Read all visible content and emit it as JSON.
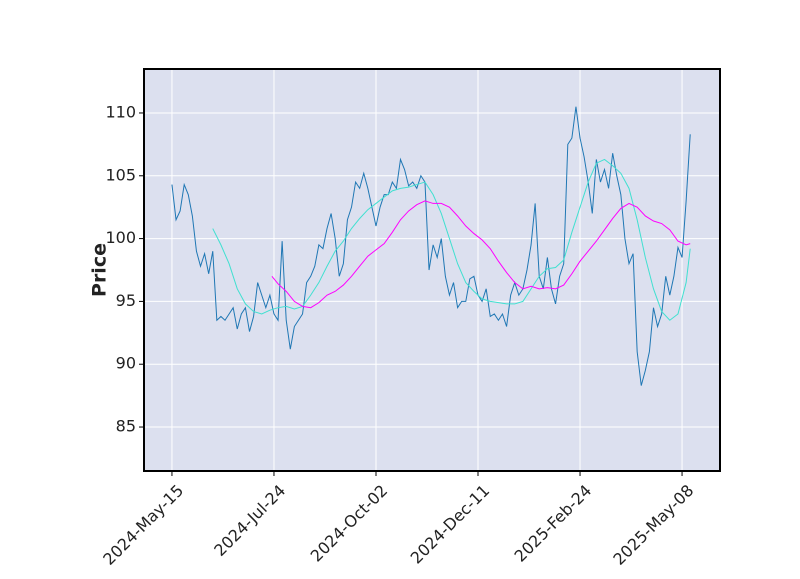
{
  "chart_data": {
    "type": "line",
    "y_label": "Price",
    "background": "#dce0ef",
    "grid": true,
    "grid_color": "#ffffff",
    "xlim": [
      -13.7,
      268.6
    ],
    "ylim": [
      81.5,
      113.5
    ],
    "xticks": [
      {
        "value": 0,
        "label": "2024-May-15"
      },
      {
        "value": 50,
        "label": "2024-Jul-24"
      },
      {
        "value": 100,
        "label": "2024-Oct-02"
      },
      {
        "value": 150,
        "label": "2024-Dec-11"
      },
      {
        "value": 200,
        "label": "2025-Feb-24"
      },
      {
        "value": 250,
        "label": "2025-May-08"
      }
    ],
    "yticks": [
      85,
      90,
      95,
      100,
      105,
      110
    ],
    "series": [
      {
        "color": "#1f77b4",
        "x": [
          0,
          2,
          4,
          6,
          8,
          10,
          12,
          14,
          16,
          18,
          20,
          22,
          24,
          26,
          28,
          30,
          32,
          34,
          36,
          38,
          40,
          42,
          44,
          46,
          48,
          50,
          52,
          54,
          56,
          58,
          60,
          62,
          64,
          66,
          68,
          70,
          72,
          74,
          76,
          78,
          80,
          82,
          84,
          86,
          88,
          90,
          92,
          94,
          96,
          98,
          100,
          102,
          104,
          106,
          108,
          110,
          112,
          114,
          116,
          118,
          120,
          122,
          124,
          126,
          128,
          130,
          132,
          134,
          136,
          138,
          140,
          142,
          144,
          146,
          148,
          150,
          152,
          154,
          156,
          158,
          160,
          162,
          164,
          166,
          168,
          170,
          172,
          174,
          176,
          178,
          180,
          182,
          184,
          186,
          188,
          190,
          192,
          194,
          196,
          198,
          200,
          202,
          204,
          206,
          208,
          210,
          212,
          214,
          216,
          218,
          220,
          222,
          224,
          226,
          228,
          230,
          232,
          234,
          236,
          238,
          240,
          242,
          244,
          246,
          248,
          250,
          252,
          254
        ],
        "values": [
          104.3,
          101.5,
          102.2,
          104.3,
          103.5,
          101.8,
          99,
          97.8,
          98.8,
          97.2,
          99,
          93.5,
          93.8,
          93.5,
          94,
          94.5,
          92.8,
          94,
          94.5,
          92.6,
          93.8,
          96.5,
          95.5,
          94.5,
          95.5,
          94,
          93.5,
          99.8,
          93.5,
          91.2,
          93,
          93.5,
          94,
          96.5,
          97,
          97.8,
          99.5,
          99.2,
          100.8,
          102,
          100,
          97,
          98,
          101.5,
          102.5,
          104.5,
          104,
          105.2,
          104,
          102.5,
          101,
          102.5,
          103.5,
          103.5,
          104.5,
          104,
          106.3,
          105.5,
          104.2,
          104.5,
          104,
          105,
          104.5,
          97.5,
          99.5,
          98.5,
          100,
          97,
          95.5,
          96.5,
          94.5,
          95,
          95,
          96.8,
          97,
          95.5,
          95,
          96,
          93.8,
          94,
          93.5,
          94,
          93,
          95.5,
          96.5,
          95.5,
          96,
          97.5,
          99.5,
          102.8,
          97,
          96,
          98.5,
          96,
          94.8,
          97,
          98,
          107.5,
          108,
          110.5,
          108,
          106.5,
          104.5,
          102,
          106.3,
          104.5,
          105.5,
          104,
          106.8,
          105,
          103.5,
          100,
          98,
          98.8,
          91,
          88.3,
          89.5,
          91,
          94.5,
          93,
          94,
          97,
          95.5,
          97,
          99.3,
          98.5,
          103,
          108.3
        ]
      },
      {
        "color": "#40e0d0",
        "x": [
          20,
          24,
          28,
          32,
          36,
          40,
          44,
          48,
          52,
          56,
          60,
          64,
          68,
          72,
          76,
          80,
          84,
          88,
          92,
          96,
          100,
          104,
          108,
          112,
          116,
          120,
          124,
          128,
          132,
          136,
          140,
          144,
          148,
          152,
          156,
          160,
          164,
          168,
          172,
          176,
          180,
          184,
          188,
          192,
          196,
          200,
          204,
          208,
          212,
          216,
          220,
          224,
          228,
          232,
          236,
          240,
          244,
          248,
          252,
          254
        ],
        "values": [
          100.8,
          99.5,
          98,
          96,
          94.8,
          94.2,
          94,
          94.3,
          94.5,
          94.6,
          94.4,
          94.6,
          95.5,
          96.5,
          97.8,
          99,
          99.8,
          100.8,
          101.6,
          102.3,
          102.8,
          103.3,
          103.8,
          104,
          104.1,
          104.3,
          104.5,
          103.5,
          102,
          100,
          98,
          96.5,
          95.8,
          95.2,
          95,
          94.9,
          94.8,
          94.8,
          95,
          96,
          97,
          97.6,
          97.7,
          98.3,
          100.5,
          102.5,
          104.5,
          106,
          106.3,
          105.8,
          105.2,
          104,
          101.5,
          98.5,
          96,
          94.2,
          93.5,
          94,
          96.5,
          99.2
        ]
      },
      {
        "color": "#ff00ff",
        "x": [
          49,
          52,
          56,
          60,
          64,
          68,
          72,
          76,
          80,
          84,
          88,
          92,
          96,
          100,
          104,
          108,
          112,
          116,
          120,
          124,
          128,
          132,
          136,
          140,
          144,
          148,
          152,
          156,
          160,
          164,
          168,
          172,
          176,
          180,
          184,
          188,
          192,
          196,
          200,
          204,
          208,
          212,
          216,
          220,
          224,
          228,
          232,
          236,
          240,
          244,
          248,
          252,
          254
        ],
        "values": [
          97,
          96.4,
          95.8,
          95,
          94.6,
          94.5,
          94.9,
          95.5,
          95.8,
          96.3,
          97,
          97.8,
          98.6,
          99.1,
          99.6,
          100.5,
          101.5,
          102.2,
          102.7,
          103,
          102.8,
          102.8,
          102.5,
          101.8,
          101,
          100.4,
          99.9,
          99.2,
          98.2,
          97.3,
          96.5,
          96,
          96.2,
          96,
          96.1,
          96,
          96.3,
          97.2,
          98.2,
          99,
          99.8,
          100.7,
          101.6,
          102.4,
          102.8,
          102.5,
          101.8,
          101.4,
          101.2,
          100.7,
          99.8,
          99.5,
          99.6
        ]
      }
    ]
  }
}
